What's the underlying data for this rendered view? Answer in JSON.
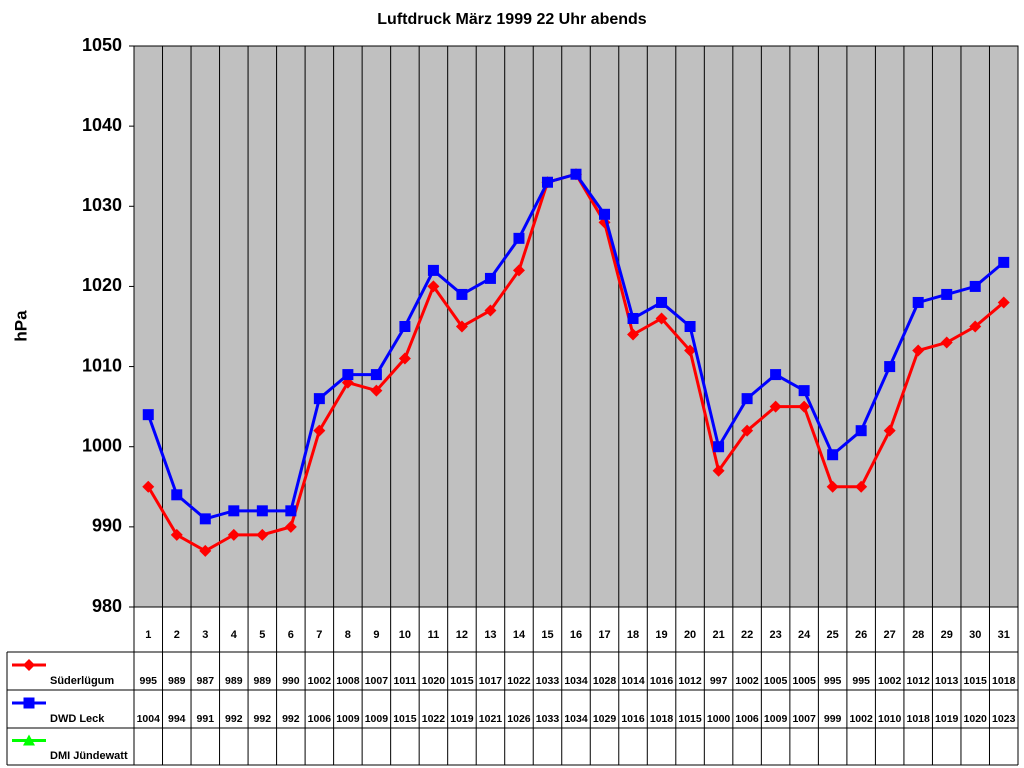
{
  "chart_data": {
    "type": "line",
    "title": "Luftdruck März 1999 22 Uhr abends",
    "y_label": "hPa",
    "categories": [
      "1",
      "2",
      "3",
      "4",
      "5",
      "6",
      "7",
      "8",
      "9",
      "10",
      "11",
      "12",
      "13",
      "14",
      "15",
      "16",
      "17",
      "18",
      "19",
      "20",
      "21",
      "22",
      "23",
      "24",
      "25",
      "26",
      "27",
      "28",
      "29",
      "30",
      "31"
    ],
    "series": [
      {
        "name": "Süderlügum",
        "color": "#ff0000",
        "marker": "diamond",
        "values": [
          995,
          989,
          987,
          989,
          989,
          990,
          1002,
          1008,
          1007,
          1011,
          1020,
          1015,
          1017,
          1022,
          1033,
          1034,
          1028,
          1014,
          1016,
          1012,
          997,
          1002,
          1005,
          1005,
          995,
          995,
          1002,
          1012,
          1013,
          1015,
          1018
        ]
      },
      {
        "name": "DWD Leck",
        "color": "#0000ff",
        "marker": "square",
        "values": [
          1004,
          994,
          991,
          992,
          992,
          992,
          1006,
          1009,
          1009,
          1015,
          1022,
          1019,
          1021,
          1026,
          1033,
          1034,
          1029,
          1016,
          1018,
          1015,
          1000,
          1006,
          1009,
          1007,
          999,
          1002,
          1010,
          1018,
          1019,
          1020,
          1023
        ]
      },
      {
        "name": "DMI Jündewatt",
        "color": "#00ff00",
        "marker": "triangle",
        "values": [
          null,
          null,
          null,
          null,
          null,
          null,
          null,
          null,
          null,
          null,
          null,
          null,
          null,
          null,
          null,
          null,
          null,
          null,
          null,
          null,
          null,
          null,
          null,
          null,
          null,
          null,
          null,
          null,
          null,
          null,
          null
        ]
      }
    ],
    "ylim": [
      980,
      1050
    ],
    "yticks": [
      980,
      990,
      1000,
      1010,
      1020,
      1030,
      1040,
      1050
    ],
    "data_table": true
  }
}
